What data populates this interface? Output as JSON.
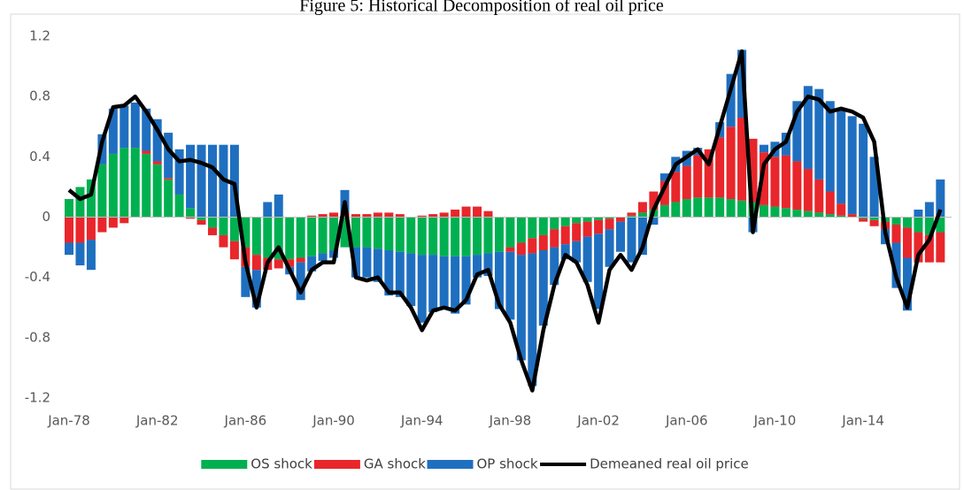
{
  "chart_data": {
    "type": "bar-line",
    "title": "Figure 5: Historical Decomposition of real oil price",
    "categories": [
      "Jan-78",
      null,
      null,
      null,
      null,
      null,
      null,
      null,
      "Jan-82",
      null,
      null,
      null,
      null,
      null,
      null,
      null,
      "Jan-86",
      null,
      null,
      null,
      null,
      null,
      null,
      null,
      "Jan-90",
      null,
      null,
      null,
      null,
      null,
      null,
      null,
      "Jan-94",
      null,
      null,
      null,
      null,
      null,
      null,
      null,
      "Jan-98",
      null,
      null,
      null,
      null,
      null,
      null,
      null,
      "Jan-02",
      null,
      null,
      null,
      null,
      null,
      null,
      null,
      "Jan-06",
      null,
      null,
      null,
      null,
      null,
      null,
      null,
      "Jan-10",
      null,
      null,
      null,
      null,
      null,
      null,
      null,
      "Jan-14",
      null,
      null,
      null,
      null,
      null,
      null,
      null
    ],
    "series": [
      {
        "name": "OS shock",
        "kind": "bar",
        "color": "#00b050",
        "values": [
          0.12,
          0.2,
          0.25,
          0.35,
          0.42,
          0.46,
          0.46,
          0.42,
          0.35,
          0.25,
          0.15,
          0.06,
          -0.02,
          -0.07,
          -0.12,
          -0.16,
          -0.2,
          -0.25,
          -0.27,
          -0.28,
          -0.28,
          -0.27,
          -0.26,
          -0.24,
          -0.22,
          -0.2,
          -0.2,
          -0.2,
          -0.21,
          -0.22,
          -0.23,
          -0.24,
          -0.25,
          -0.25,
          -0.26,
          -0.26,
          -0.26,
          -0.25,
          -0.24,
          -0.23,
          -0.2,
          -0.17,
          -0.14,
          -0.12,
          -0.08,
          -0.06,
          -0.04,
          -0.03,
          -0.02,
          -0.01,
          0.0,
          0.01,
          0.03,
          0.05,
          0.08,
          0.1,
          0.12,
          0.13,
          0.13,
          0.13,
          0.12,
          0.11,
          0.1,
          0.08,
          0.07,
          0.06,
          0.05,
          0.04,
          0.03,
          0.02,
          0.01,
          0.0,
          -0.01,
          -0.02,
          -0.03,
          -0.05,
          -0.07,
          -0.1,
          -0.12,
          -0.1
        ]
      },
      {
        "name": "GA shock",
        "kind": "bar",
        "color": "#e8262b",
        "values": [
          -0.17,
          -0.17,
          -0.15,
          -0.1,
          -0.07,
          -0.04,
          0.0,
          0.02,
          0.02,
          0.01,
          0.0,
          -0.01,
          -0.03,
          -0.05,
          -0.08,
          -0.12,
          -0.13,
          -0.1,
          -0.08,
          -0.06,
          -0.05,
          -0.03,
          0.01,
          0.02,
          0.03,
          0.03,
          0.02,
          0.02,
          0.03,
          0.03,
          0.02,
          0.0,
          0.01,
          0.02,
          0.03,
          0.05,
          0.07,
          0.07,
          0.04,
          0.0,
          -0.03,
          -0.08,
          -0.1,
          -0.1,
          -0.12,
          -0.12,
          -0.12,
          -0.1,
          -0.09,
          -0.07,
          -0.03,
          0.02,
          0.07,
          0.12,
          0.16,
          0.2,
          0.22,
          0.28,
          0.32,
          0.4,
          0.48,
          0.55,
          0.42,
          0.35,
          0.33,
          0.35,
          0.32,
          0.28,
          0.22,
          0.15,
          0.08,
          0.02,
          -0.02,
          -0.04,
          -0.05,
          -0.12,
          -0.2,
          -0.2,
          -0.18,
          -0.2
        ]
      },
      {
        "name": "OP shock",
        "kind": "bar",
        "color": "#1f6fc0",
        "values": [
          -0.08,
          -0.15,
          -0.2,
          0.2,
          0.3,
          0.28,
          0.3,
          0.28,
          0.28,
          0.3,
          0.3,
          0.42,
          0.48,
          0.48,
          0.48,
          0.48,
          -0.2,
          -0.25,
          0.1,
          0.15,
          -0.05,
          -0.25,
          -0.1,
          -0.05,
          -0.05,
          0.15,
          -0.2,
          -0.2,
          -0.22,
          -0.3,
          -0.3,
          -0.35,
          -0.45,
          -0.38,
          -0.35,
          -0.38,
          -0.32,
          -0.15,
          -0.15,
          -0.38,
          -0.45,
          -0.7,
          -0.88,
          -0.5,
          -0.25,
          -0.1,
          -0.14,
          -0.3,
          -0.5,
          -0.25,
          -0.2,
          -0.3,
          -0.25,
          -0.05,
          0.05,
          0.1,
          0.1,
          0.05,
          0.0,
          0.1,
          0.35,
          0.45,
          -0.1,
          0.05,
          0.1,
          0.15,
          0.4,
          0.55,
          0.6,
          0.6,
          0.62,
          0.65,
          0.62,
          0.4,
          -0.1,
          -0.3,
          -0.35,
          0.05,
          0.1,
          0.25
        ]
      },
      {
        "name": "Demeaned real oil price",
        "kind": "line",
        "color": "#000000",
        "values": [
          0.18,
          0.12,
          0.15,
          0.5,
          0.73,
          0.74,
          0.8,
          0.7,
          0.58,
          0.45,
          0.37,
          0.38,
          0.36,
          0.33,
          0.25,
          0.22,
          -0.3,
          -0.6,
          -0.3,
          -0.2,
          -0.35,
          -0.5,
          -0.35,
          -0.3,
          -0.3,
          0.1,
          -0.4,
          -0.42,
          -0.4,
          -0.5,
          -0.5,
          -0.6,
          -0.75,
          -0.62,
          -0.6,
          -0.62,
          -0.55,
          -0.38,
          -0.35,
          -0.58,
          -0.7,
          -0.95,
          -1.15,
          -0.75,
          -0.45,
          -0.25,
          -0.3,
          -0.45,
          -0.7,
          -0.35,
          -0.25,
          -0.35,
          -0.2,
          0.05,
          0.2,
          0.35,
          0.4,
          0.45,
          0.35,
          0.6,
          0.85,
          1.1,
          -0.1,
          0.35,
          0.45,
          0.5,
          0.7,
          0.8,
          0.78,
          0.7,
          0.72,
          0.7,
          0.66,
          0.5,
          -0.1,
          -0.4,
          -0.6,
          -0.25,
          -0.15,
          0.05
        ]
      }
    ],
    "ylim": [
      -1.2,
      1.2
    ],
    "yticks": [
      1.2,
      0.8,
      0.4,
      0,
      -0.4,
      -0.8,
      -1.2
    ],
    "legend": "bottom"
  }
}
